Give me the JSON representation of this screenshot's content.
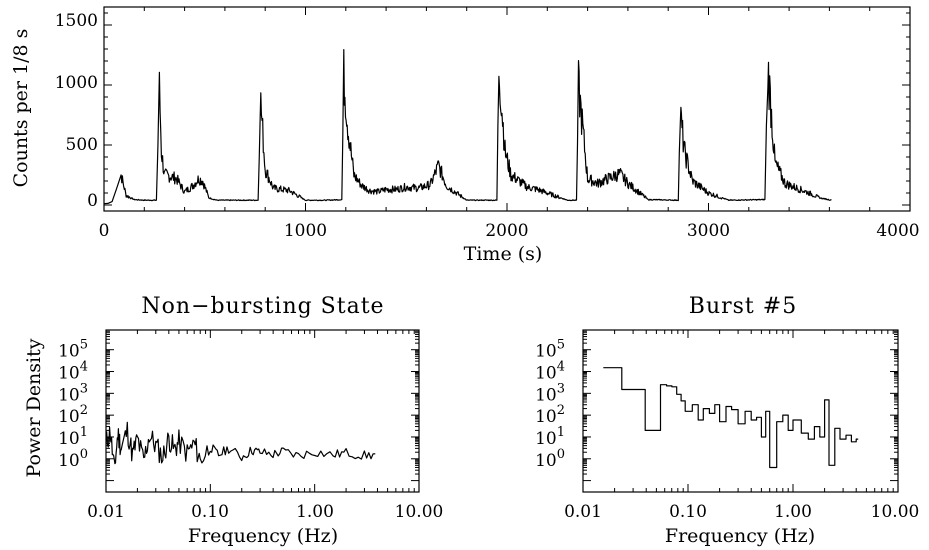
{
  "chart_data": [
    {
      "type": "line",
      "title": "",
      "xlabel": "Time (s)",
      "ylabel": "Counts per 1/8 s",
      "xlim": [
        0,
        4000
      ],
      "ylim": [
        -50,
        1650
      ],
      "xticks": [
        0,
        1000,
        2000,
        3000,
        4000
      ],
      "xtick_labels": [
        "0",
        "1000",
        "2000",
        "3000",
        "4000"
      ],
      "yticks": [
        0,
        500,
        1000,
        1500
      ],
      "ytick_labels": [
        "0",
        "500",
        "1000",
        "1500"
      ],
      "series": [
        {
          "x": [
            0,
            40,
            85,
            110,
            150,
            200,
            260,
            275,
            285,
            300,
            330,
            360,
            400,
            440,
            470,
            490,
            520,
            560,
            700,
            765,
            775,
            800,
            840,
            880,
            920,
            960,
            1000,
            1100,
            1180,
            1190,
            1210,
            1240,
            1280,
            1320,
            1360,
            1400,
            1450,
            1500,
            1560,
            1620,
            1660,
            1700,
            1800,
            1950,
            1960,
            1990,
            2020,
            2060,
            2100,
            2150,
            2300,
            2345,
            2355,
            2400,
            2450,
            2500,
            2560,
            2600,
            2700,
            2850,
            2860,
            2880,
            2920,
            2960,
            3000,
            3100,
            3280,
            3295,
            3330,
            3380,
            3440,
            3500,
            3550,
            3610
          ],
          "y": [
            0,
            30,
            250,
            80,
            45,
            40,
            40,
            960,
            450,
            250,
            240,
            220,
            110,
            160,
            220,
            200,
            60,
            40,
            40,
            40,
            920,
            300,
            140,
            130,
            120,
            80,
            40,
            40,
            45,
            1080,
            660,
            250,
            160,
            120,
            110,
            130,
            130,
            150,
            140,
            170,
            330,
            160,
            40,
            40,
            1150,
            450,
            250,
            200,
            150,
            130,
            40,
            40,
            990,
            220,
            180,
            220,
            260,
            180,
            45,
            40,
            760,
            450,
            200,
            150,
            100,
            40,
            45,
            1150,
            350,
            180,
            140,
            100,
            60,
            40
          ]
        }
      ]
    },
    {
      "type": "line",
      "title": "Non−bursting State",
      "xlabel": "Frequency (Hz)",
      "ylabel": "Power Density",
      "log_x": true,
      "log_y": true,
      "xlim": [
        0.01,
        10.0
      ],
      "ylim": [
        0.03,
        800000
      ],
      "xtick_labels": [
        "0.01",
        "0.10",
        "1.00",
        "10.00"
      ],
      "ytick_labels": [
        "10^0",
        "10^1",
        "10^2",
        "10^3",
        "10^4",
        "10^5"
      ],
      "series": [
        {
          "x": [
            0.01,
            0.011,
            0.012,
            0.013,
            0.014,
            0.016,
            0.018,
            0.02,
            0.023,
            0.026,
            0.03,
            0.035,
            0.04,
            0.045,
            0.05,
            0.06,
            0.07,
            0.08,
            0.1,
            0.12,
            0.15,
            0.2,
            0.25,
            0.3,
            0.4,
            0.5,
            0.7,
            1.0,
            1.5,
            2.0,
            3.0,
            4.0
          ],
          "y": [
            5,
            18,
            0.3,
            14,
            3,
            20,
            1.5,
            8,
            0.8,
            12,
            4,
            1.2,
            9,
            2.5,
            6,
            1.8,
            5,
            0.9,
            3.5,
            1.5,
            3,
            1.2,
            2.5,
            2,
            1.6,
            2.2,
            1.4,
            2.1,
            1.5,
            1.9,
            1.4,
            1.6
          ]
        }
      ]
    },
    {
      "type": "line",
      "title": "Burst #5",
      "xlabel": "Frequency (Hz)",
      "ylabel": "",
      "log_x": true,
      "log_y": true,
      "xlim": [
        0.01,
        10.0
      ],
      "ylim": [
        0.03,
        800000
      ],
      "xtick_labels": [
        "0.01",
        "0.10",
        "1.00",
        "10.00"
      ],
      "ytick_labels": [
        "10^0",
        "10^1",
        "10^2",
        "10^3",
        "10^4",
        "10^5"
      ],
      "series": [
        {
          "x": [
            0.0156,
            0.0234,
            0.0313,
            0.0391,
            0.0469,
            0.0547,
            0.0625,
            0.0703,
            0.0781,
            0.086,
            0.094,
            0.11,
            0.125,
            0.14,
            0.16,
            0.18,
            0.2,
            0.23,
            0.26,
            0.3,
            0.35,
            0.4,
            0.45,
            0.5,
            0.55,
            0.6,
            0.7,
            0.8,
            0.9,
            1.0,
            1.2,
            1.4,
            1.6,
            1.8,
            2.0,
            2.2,
            2.5,
            2.8,
            3.2,
            3.6,
            4.0
          ],
          "y": [
            15000,
            1500,
            1500,
            20,
            20,
            2500,
            2200,
            2000,
            900,
            450,
            150,
            300,
            60,
            200,
            120,
            300,
            50,
            250,
            180,
            40,
            150,
            60,
            80,
            10,
            150,
            0.4,
            50,
            100,
            20,
            60,
            15,
            8,
            30,
            10,
            500,
            0.5,
            25,
            8,
            12,
            6,
            8
          ]
        }
      ]
    }
  ]
}
